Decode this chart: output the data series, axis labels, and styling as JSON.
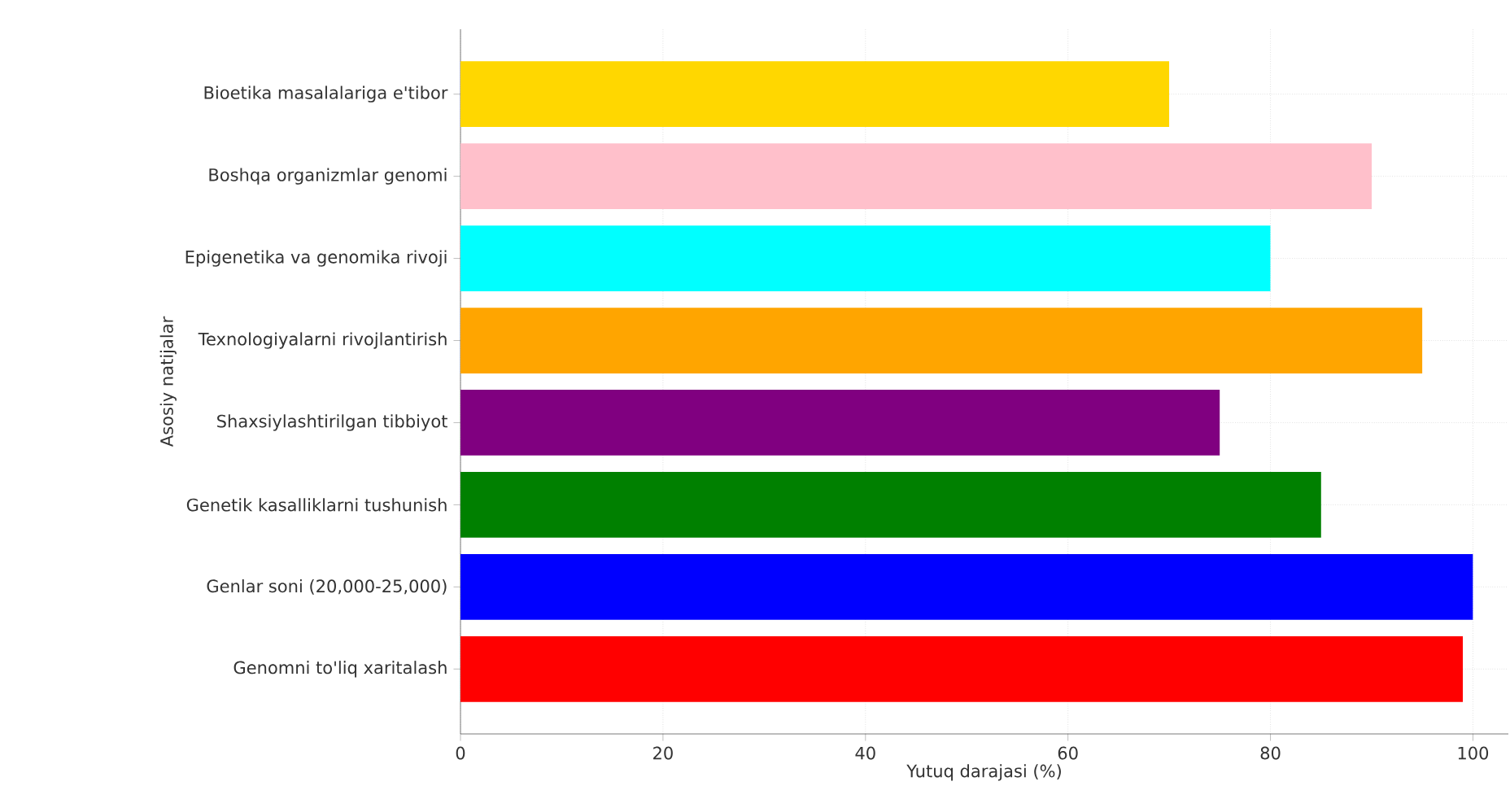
{
  "chart_data": {
    "type": "bar",
    "orientation": "horizontal",
    "xlabel": "Yutuq darajasi (%)",
    "ylabel": "Asosiy natijalar",
    "categories": [
      "Bioetika masalalariga e'tibor",
      "Boshqa organizmlar genomi",
      "Epigenetika va genomika rivoji",
      "Texnologiyalarni rivojlantirish",
      "Shaxsiylashtirilgan tibbiyot",
      "Genetik kasalliklarni tushunish",
      "Genlar soni (20,000-25,000)",
      "Genomni to'liq xaritalash"
    ],
    "values": [
      70,
      90,
      80,
      95,
      75,
      85,
      100,
      99
    ],
    "colors": [
      "#ffd700",
      "#ffc0cb",
      "#00ffff",
      "#ffa500",
      "#800080",
      "#008000",
      "#0000ff",
      "#ff0000"
    ],
    "xlim": [
      0,
      103.5
    ],
    "xticks": [
      0,
      20,
      40,
      60,
      80,
      100
    ],
    "grid": true
  }
}
